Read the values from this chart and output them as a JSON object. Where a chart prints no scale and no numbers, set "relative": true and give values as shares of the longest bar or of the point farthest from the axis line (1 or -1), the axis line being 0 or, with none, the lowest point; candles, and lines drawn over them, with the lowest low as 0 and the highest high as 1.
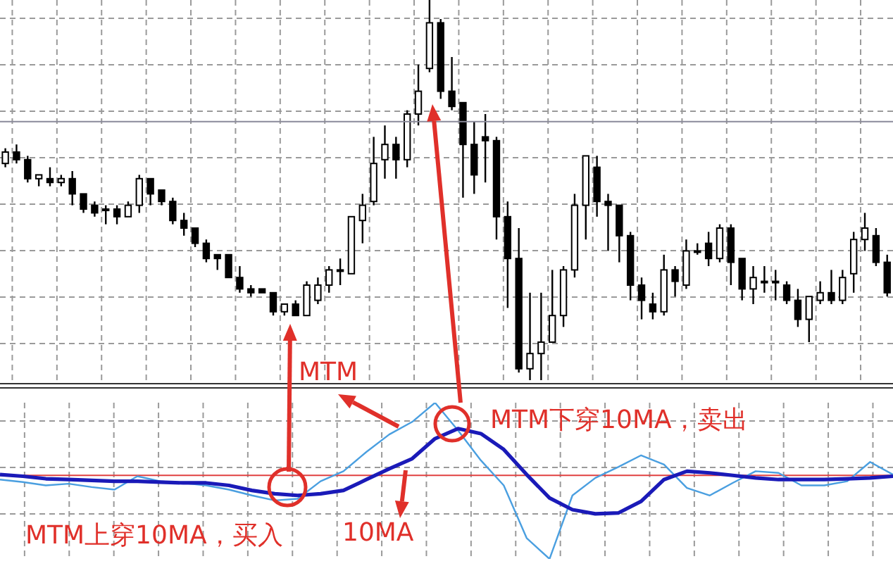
{
  "chart_data": [
    {
      "type": "candlestick",
      "relative": true,
      "grid": true,
      "categories": [
        null,
        null,
        null,
        null,
        null,
        null,
        null,
        null,
        null,
        null,
        null,
        null,
        null,
        null,
        null,
        null,
        null,
        null,
        null,
        null,
        null,
        null,
        null,
        null,
        null,
        null,
        null,
        null,
        null,
        null,
        null,
        null,
        null,
        null,
        null,
        null,
        null,
        null,
        null,
        null,
        null,
        null,
        null,
        null,
        null,
        null,
        null,
        null,
        null,
        null,
        null,
        null,
        null,
        null,
        null,
        null,
        null,
        null,
        null,
        null,
        null,
        null,
        null,
        null,
        null,
        null,
        null,
        null,
        null,
        null,
        null,
        null,
        null,
        null,
        null,
        null,
        null,
        null,
        null,
        null
      ],
      "ohlc": [
        [
          0.57,
          0.61,
          0.56,
          0.6
        ],
        [
          0.6,
          0.62,
          0.57,
          0.58
        ],
        [
          0.58,
          0.59,
          0.52,
          0.53
        ],
        [
          0.53,
          0.54,
          0.51,
          0.54
        ],
        [
          0.53,
          0.56,
          0.51,
          0.52
        ],
        [
          0.52,
          0.54,
          0.51,
          0.53
        ],
        [
          0.53,
          0.55,
          0.46,
          0.49
        ],
        [
          0.49,
          0.49,
          0.44,
          0.45
        ],
        [
          0.46,
          0.47,
          0.43,
          0.44
        ],
        [
          0.45,
          0.46,
          0.41,
          0.45
        ],
        [
          0.45,
          0.46,
          0.41,
          0.43
        ],
        [
          0.43,
          0.47,
          0.43,
          0.46
        ],
        [
          0.46,
          0.54,
          0.44,
          0.53
        ],
        [
          0.53,
          0.53,
          0.46,
          0.49
        ],
        [
          0.5,
          0.5,
          0.46,
          0.47
        ],
        [
          0.47,
          0.48,
          0.41,
          0.42
        ],
        [
          0.42,
          0.44,
          0.38,
          0.4
        ],
        [
          0.4,
          0.4,
          0.35,
          0.36
        ],
        [
          0.36,
          0.37,
          0.31,
          0.32
        ],
        [
          0.33,
          0.33,
          0.29,
          0.32
        ],
        [
          0.33,
          0.33,
          0.27,
          0.27
        ],
        [
          0.27,
          0.3,
          0.23,
          0.24
        ],
        [
          0.24,
          0.25,
          0.22,
          0.23
        ],
        [
          0.24,
          0.24,
          0.23,
          0.23
        ],
        [
          0.23,
          0.23,
          0.17,
          0.18
        ],
        [
          0.18,
          0.2,
          0.17,
          0.2
        ],
        [
          0.2,
          0.21,
          0.17,
          0.17
        ],
        [
          0.17,
          0.26,
          0.17,
          0.25
        ],
        [
          0.21,
          0.27,
          0.2,
          0.25
        ],
        [
          0.25,
          0.3,
          0.23,
          0.29
        ],
        [
          0.29,
          0.32,
          0.25,
          0.29
        ],
        [
          0.28,
          0.43,
          0.28,
          0.43
        ],
        [
          0.42,
          0.49,
          0.36,
          0.46
        ],
        [
          0.47,
          0.64,
          0.46,
          0.57
        ],
        [
          0.58,
          0.67,
          0.53,
          0.62
        ],
        [
          0.62,
          0.64,
          0.53,
          0.58
        ],
        [
          0.58,
          0.71,
          0.56,
          0.7
        ],
        [
          0.7,
          0.83,
          0.67,
          0.76
        ],
        [
          0.82,
          1.0,
          0.81,
          0.94
        ],
        [
          0.94,
          0.95,
          0.74,
          0.76
        ],
        [
          0.76,
          0.85,
          0.71,
          0.72
        ],
        [
          0.73,
          0.73,
          0.48,
          0.62
        ],
        [
          0.62,
          0.68,
          0.49,
          0.54
        ],
        [
          0.64,
          0.7,
          0.52,
          0.63
        ],
        [
          0.63,
          0.64,
          0.37,
          0.43
        ],
        [
          0.43,
          0.47,
          0.19,
          0.32
        ],
        [
          0.32,
          0.4,
          0.02,
          0.03
        ],
        [
          0.03,
          0.23,
          0.0,
          0.07
        ],
        [
          0.07,
          0.23,
          0.0,
          0.1
        ],
        [
          0.1,
          0.29,
          0.1,
          0.17
        ],
        [
          0.17,
          0.3,
          0.14,
          0.29
        ],
        [
          0.29,
          0.49,
          0.27,
          0.46
        ],
        [
          0.46,
          0.59,
          0.37,
          0.59
        ],
        [
          0.56,
          0.59,
          0.43,
          0.47
        ],
        [
          0.47,
          0.49,
          0.34,
          0.46
        ],
        [
          0.46,
          0.46,
          0.31,
          0.38
        ],
        [
          0.38,
          0.39,
          0.21,
          0.25
        ],
        [
          0.25,
          0.27,
          0.16,
          0.21
        ],
        [
          0.2,
          0.23,
          0.16,
          0.18
        ],
        [
          0.18,
          0.33,
          0.17,
          0.29
        ],
        [
          0.29,
          0.3,
          0.22,
          0.26
        ],
        [
          0.25,
          0.37,
          0.24,
          0.34
        ],
        [
          0.34,
          0.36,
          0.33,
          0.34
        ],
        [
          0.36,
          0.39,
          0.3,
          0.32
        ],
        [
          0.32,
          0.41,
          0.31,
          0.4
        ],
        [
          0.4,
          0.41,
          0.25,
          0.31
        ],
        [
          0.32,
          0.32,
          0.21,
          0.24
        ],
        [
          0.24,
          0.3,
          0.2,
          0.27
        ],
        [
          0.26,
          0.3,
          0.23,
          0.26
        ],
        [
          0.26,
          0.29,
          0.21,
          0.26
        ],
        [
          0.25,
          0.26,
          0.2,
          0.21
        ],
        [
          0.21,
          0.24,
          0.14,
          0.16
        ],
        [
          0.16,
          0.22,
          0.1,
          0.22
        ],
        [
          0.21,
          0.26,
          0.2,
          0.23
        ],
        [
          0.23,
          0.29,
          0.2,
          0.21
        ],
        [
          0.21,
          0.29,
          0.2,
          0.27
        ],
        [
          0.28,
          0.39,
          0.23,
          0.37
        ],
        [
          0.37,
          0.44,
          0.34,
          0.4
        ],
        [
          0.38,
          0.4,
          0.3,
          0.31
        ],
        [
          0.31,
          0.33,
          0.22,
          0.23
        ]
      ],
      "ref_lines": [
        {
          "axis": "y",
          "value": 0.68,
          "color": "#8a8a9a"
        }
      ]
    },
    {
      "type": "line",
      "relative": true,
      "grid": true,
      "categories": [
        null,
        null,
        null,
        null,
        null,
        null,
        null,
        null,
        null,
        null,
        null,
        null,
        null,
        null,
        null,
        null,
        null,
        null,
        null,
        null,
        null,
        null,
        null,
        null,
        null,
        null,
        null,
        null,
        null,
        null,
        null,
        null,
        null,
        null,
        null,
        null,
        null,
        null,
        null,
        null
      ],
      "series": [
        {
          "name": "MTM",
          "color": "#4a9fe0",
          "values": [
            -0.05,
            -0.08,
            -0.12,
            -0.1,
            -0.14,
            -0.17,
            -0.01,
            -0.07,
            -0.09,
            -0.12,
            -0.17,
            -0.24,
            -0.3,
            -0.28,
            -0.07,
            0.05,
            0.28,
            0.49,
            0.64,
            0.87,
            0.54,
            0.18,
            -0.12,
            -0.75,
            -1.0,
            -0.24,
            -0.03,
            0.1,
            0.24,
            0.13,
            -0.15,
            -0.24,
            -0.09,
            0.05,
            0.03,
            -0.12,
            -0.12,
            -0.07,
            0.16,
            0.01
          ]
        },
        {
          "name": "10MA",
          "color": "#1a1ab8",
          "values": [
            0.01,
            -0.01,
            -0.04,
            -0.05,
            -0.06,
            -0.07,
            -0.07,
            -0.08,
            -0.09,
            -0.09,
            -0.12,
            -0.18,
            -0.22,
            -0.24,
            -0.22,
            -0.18,
            -0.05,
            0.08,
            0.2,
            0.44,
            0.56,
            0.5,
            0.31,
            0.01,
            -0.27,
            -0.41,
            -0.46,
            -0.45,
            -0.31,
            -0.05,
            0.05,
            0.03,
            0.0,
            -0.03,
            -0.05,
            -0.05,
            -0.05,
            -0.04,
            -0.03,
            -0.01
          ]
        }
      ],
      "ref_lines": [
        {
          "axis": "y",
          "value": 0,
          "color": "#e04040"
        }
      ],
      "annotations": [
        "MTM下穿10MA，卖出",
        "MTM上穿10MA，买入"
      ]
    }
  ]
}
